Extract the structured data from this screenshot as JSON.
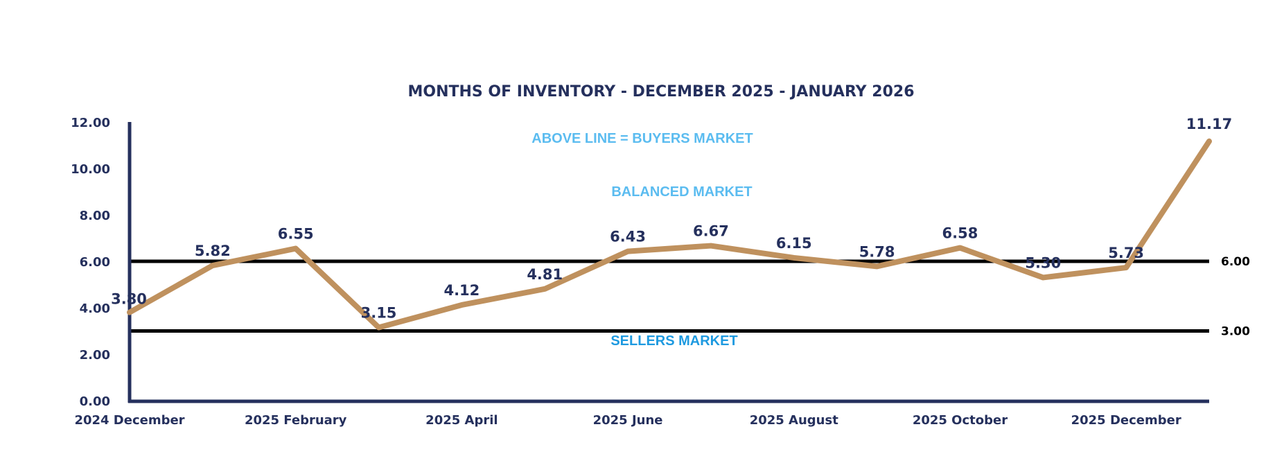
{
  "chart_data": {
    "type": "line",
    "title": "MONTHS OF INVENTORY - DECEMBER 2025 - JANUARY 2026",
    "xlabel": "",
    "ylabel": "",
    "ylim": [
      0,
      12
    ],
    "yticks": [
      "0.00",
      "2.00",
      "4.00",
      "6.00",
      "8.00",
      "10.00",
      "12.00"
    ],
    "ytick_values": [
      0,
      2,
      4,
      6,
      8,
      10,
      12
    ],
    "x_tick_labels": [
      {
        "index": 0,
        "label": "2024 December"
      },
      {
        "index": 2,
        "label": "2025 February"
      },
      {
        "index": 4,
        "label": "2025 April"
      },
      {
        "index": 6,
        "label": "2025 June"
      },
      {
        "index": 8,
        "label": "2025 August"
      },
      {
        "index": 10,
        "label": "2025 October"
      },
      {
        "index": 12,
        "label": "2025 December"
      }
    ],
    "series": [
      {
        "name": "Months of Inventory",
        "color": "#bf915e",
        "values": [
          3.8,
          5.82,
          6.55,
          3.15,
          4.12,
          4.81,
          6.43,
          6.67,
          6.15,
          5.78,
          6.58,
          5.3,
          5.73,
          11.17
        ],
        "labels": [
          "3.80",
          "5.82",
          "6.55",
          "3.15",
          "4.12",
          "4.81",
          "6.43",
          "6.67",
          "6.15",
          "5.78",
          "6.58",
          "5.30",
          "5.73",
          "11.17"
        ]
      }
    ],
    "reference_lines": [
      {
        "value": 6,
        "label": "6.00",
        "color": "#000000"
      },
      {
        "value": 3,
        "label": "3.00",
        "color": "#000000"
      }
    ],
    "zone_labels": [
      {
        "text": "ABOVE LINE = BUYERS MARKET",
        "color": "#5bbcf0"
      },
      {
        "text": "BALANCED MARKET",
        "color": "#5bbcf0"
      },
      {
        "text": "SELLERS MARKET",
        "color": "#1e9ae0"
      }
    ],
    "axis_color": "#25305d",
    "grid": false,
    "legend": "none"
  }
}
